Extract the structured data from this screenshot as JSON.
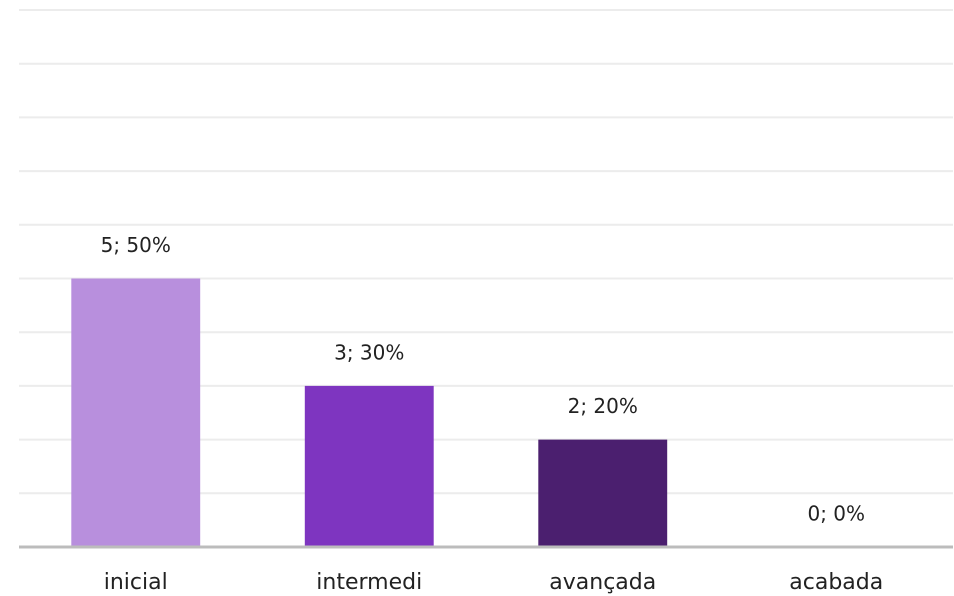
{
  "chart_data": {
    "type": "bar",
    "categories": [
      "inicial",
      "intermedi",
      "avançada",
      "acabada"
    ],
    "values": [
      5,
      3,
      2,
      0
    ],
    "value_labels": [
      "5; 50%",
      "3; 30%",
      "2; 20%",
      "0; 0%"
    ],
    "colors": [
      "#b88fdd",
      "#7e35c0",
      "#4b1f6f",
      "#4b1f6f"
    ],
    "ylim": [
      0,
      10
    ],
    "yticks": [
      0,
      1,
      2,
      3,
      4,
      5,
      6,
      7,
      8,
      9,
      10
    ],
    "grid": true
  }
}
